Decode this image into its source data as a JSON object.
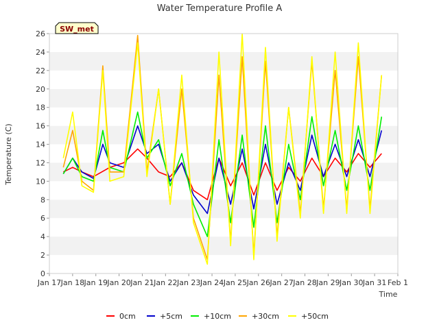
{
  "chart_data": {
    "type": "line",
    "title": "Water Temperature Profile A",
    "xlabel": "Time",
    "ylabel": "Temperature (C)",
    "site_tag": "SW_met",
    "ylim": [
      0,
      26
    ],
    "yticks": [
      0,
      2,
      4,
      6,
      8,
      10,
      12,
      14,
      16,
      18,
      20,
      22,
      24,
      26
    ],
    "xlim": [
      0,
      15
    ],
    "xticks": [
      "Jan 17",
      "Jan 18",
      "Jan 19",
      "Jan 20",
      "Jan 21",
      "Jan 22",
      "Jan 23",
      "Jan 24",
      "Jan 25",
      "Jan 26",
      "Jan 27",
      "Jan 28",
      "Jan 29",
      "Jan 30",
      "Jan 31",
      "Feb 1"
    ],
    "grid": "horizontal bands",
    "legend_position": "bottom",
    "series": [
      {
        "name": "0cm",
        "color": "#ff0000",
        "x": [
          0.6,
          1.0,
          1.4,
          1.9,
          2.6,
          3.2,
          3.8,
          4.2,
          4.7,
          5.2,
          5.7,
          6.2,
          6.8,
          7.3,
          7.8,
          8.3,
          8.8,
          9.3,
          9.8,
          10.3,
          10.8,
          11.3,
          11.8,
          12.3,
          12.8,
          13.3,
          13.8,
          14.3
        ],
        "values": [
          11.0,
          11.5,
          11.0,
          10.5,
          11.5,
          12.0,
          13.5,
          12.5,
          11.0,
          10.5,
          12.0,
          9.0,
          8.0,
          12.5,
          9.5,
          12.0,
          8.5,
          12.0,
          9.0,
          11.5,
          10.0,
          12.5,
          10.5,
          12.5,
          11.0,
          13.0,
          11.5,
          13.0
        ]
      },
      {
        "name": "+5cm",
        "color": "#0000cc",
        "x": [
          0.6,
          1.0,
          1.4,
          1.9,
          2.3,
          2.6,
          3.2,
          3.8,
          4.2,
          4.7,
          5.2,
          5.7,
          6.2,
          6.8,
          7.3,
          7.8,
          8.3,
          8.8,
          9.3,
          9.8,
          10.3,
          10.8,
          11.3,
          11.8,
          12.3,
          12.8,
          13.3,
          13.8,
          14.3
        ],
        "values": [
          10.8,
          12.5,
          11.0,
          10.3,
          14.0,
          12.0,
          11.5,
          16.0,
          13.0,
          14.0,
          10.0,
          12.0,
          8.5,
          6.5,
          12.5,
          7.5,
          13.5,
          7.0,
          14.0,
          7.5,
          12.0,
          9.0,
          15.0,
          10.5,
          14.0,
          10.5,
          14.5,
          10.5,
          15.5
        ]
      },
      {
        "name": "+10cm",
        "color": "#00ee00",
        "x": [
          0.6,
          1.0,
          1.4,
          1.9,
          2.3,
          2.6,
          3.2,
          3.8,
          4.2,
          4.7,
          5.2,
          5.7,
          6.2,
          6.8,
          7.3,
          7.8,
          8.3,
          8.8,
          9.3,
          9.8,
          10.3,
          10.8,
          11.3,
          11.8,
          12.3,
          12.8,
          13.3,
          13.8,
          14.3
        ],
        "values": [
          10.8,
          12.5,
          10.5,
          10.0,
          15.5,
          11.5,
          11.0,
          17.5,
          12.5,
          14.5,
          9.5,
          13.0,
          7.5,
          4.0,
          14.5,
          5.5,
          15.0,
          5.0,
          16.0,
          5.5,
          14.0,
          8.0,
          17.0,
          9.5,
          15.5,
          9.0,
          16.0,
          9.0,
          17.0
        ]
      },
      {
        "name": "+30cm",
        "color": "#ffa500",
        "x": [
          0.6,
          1.0,
          1.4,
          1.9,
          2.3,
          2.6,
          3.2,
          3.8,
          4.2,
          4.7,
          5.2,
          5.7,
          6.2,
          6.8,
          7.3,
          7.8,
          8.3,
          8.8,
          9.3,
          9.8,
          10.3,
          10.8,
          11.3,
          11.8,
          12.3,
          12.8,
          13.3,
          13.8,
          14.3
        ],
        "values": [
          11.5,
          15.5,
          10.0,
          9.0,
          22.5,
          11.0,
          11.0,
          25.8,
          11.0,
          20.0,
          7.5,
          20.0,
          6.0,
          1.5,
          21.5,
          3.5,
          23.5,
          2.0,
          23.0,
          4.0,
          18.0,
          6.5,
          23.0,
          7.0,
          22.0,
          7.0,
          23.5,
          7.0,
          21.5
        ]
      },
      {
        "name": "+50cm",
        "color": "#ffff00",
        "x": [
          0.6,
          1.0,
          1.4,
          1.9,
          2.3,
          2.6,
          3.2,
          3.8,
          4.2,
          4.7,
          5.2,
          5.7,
          6.2,
          6.8,
          7.3,
          7.8,
          8.3,
          8.8,
          9.3,
          9.8,
          10.3,
          10.8,
          11.3,
          11.8,
          12.3,
          12.8,
          13.3,
          13.8,
          14.3
        ],
        "values": [
          12.5,
          17.5,
          9.5,
          8.8,
          22.0,
          10.0,
          10.5,
          25.0,
          10.5,
          20.0,
          7.5,
          21.5,
          5.5,
          1.0,
          24.0,
          3.0,
          26.0,
          1.5,
          24.5,
          3.5,
          18.0,
          6.0,
          23.5,
          6.5,
          24.0,
          6.5,
          25.0,
          6.5,
          21.5
        ]
      }
    ]
  }
}
